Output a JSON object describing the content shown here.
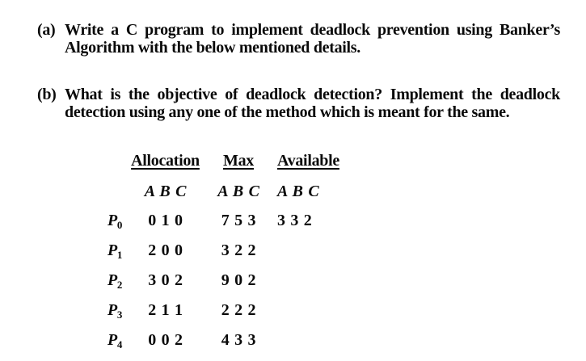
{
  "page": {
    "background_color": "#ffffff",
    "text_color": "#0a0a0a"
  },
  "questions": [
    {
      "label": "(a)",
      "line1": "Write a C program to implement deadlock prevention using Banker’s",
      "line2": "Algorithm with the below mentioned details."
    },
    {
      "label": "(b)",
      "line1": "What is the objective of deadlock detection? Implement the deadlock",
      "line2": "detection using any one of the method which is meant for the same."
    }
  ],
  "table": {
    "headers": [
      "Allocation",
      "Max",
      "Available"
    ],
    "resource_header": "A B C",
    "rows": [
      {
        "process": "P",
        "sub": "0",
        "allocation": "0 1 0",
        "max": "7 5 3",
        "available": "3 3 2"
      },
      {
        "process": "P",
        "sub": "1",
        "allocation": "2 0 0",
        "max": "3 2 2",
        "available": ""
      },
      {
        "process": "P",
        "sub": "2",
        "allocation": "3 0 2",
        "max": "9 0 2",
        "available": ""
      },
      {
        "process": "P",
        "sub": "3",
        "allocation": "2 1 1",
        "max": "2 2 2",
        "available": ""
      },
      {
        "process": "P",
        "sub": "4",
        "allocation": "0 0 2",
        "max": "4 3 3",
        "available": ""
      }
    ]
  }
}
